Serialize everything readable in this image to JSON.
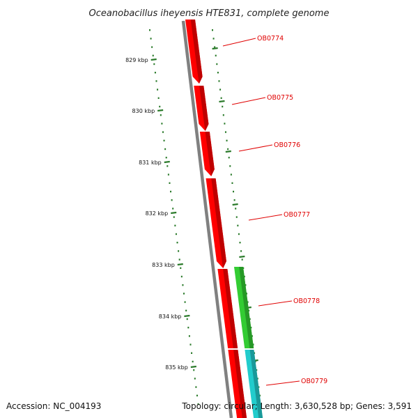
{
  "title": "Oceanobacillus iheyensis HTE831, complete genome",
  "footer": {
    "accession": "Accession: NC_004193",
    "topology": "Topology: circular; Length: 3,630,528 bp; Genes: 3,591"
  },
  "colors": {
    "backbone": "#808080",
    "forward_gene": "#ff0000",
    "reverse_gene_green": "#33cc33",
    "reverse_gene_cyan": "#22cccc",
    "tick": "#2a7a2a",
    "gene_label": "#e00000"
  },
  "ticks": [
    {
      "label": "829 kbp"
    },
    {
      "label": "830 kbp"
    },
    {
      "label": "831 kbp"
    },
    {
      "label": "832 kbp"
    },
    {
      "label": "833 kbp"
    },
    {
      "label": "834 kbp"
    },
    {
      "label": "835 kbp"
    }
  ],
  "genes": [
    {
      "label": "OB0774",
      "strand": "forward",
      "color": "#ff0000"
    },
    {
      "label": "OB0775",
      "strand": "forward",
      "color": "#ff0000"
    },
    {
      "label": "OB0776",
      "strand": "forward",
      "color": "#ff0000"
    },
    {
      "label": "OB0777",
      "strand": "forward",
      "color": "#ff0000"
    },
    {
      "label": "OB0778",
      "strand": "reverse",
      "color": "#33cc33"
    },
    {
      "label": "OB0779",
      "strand": "reverse",
      "color": "#22cccc"
    }
  ]
}
